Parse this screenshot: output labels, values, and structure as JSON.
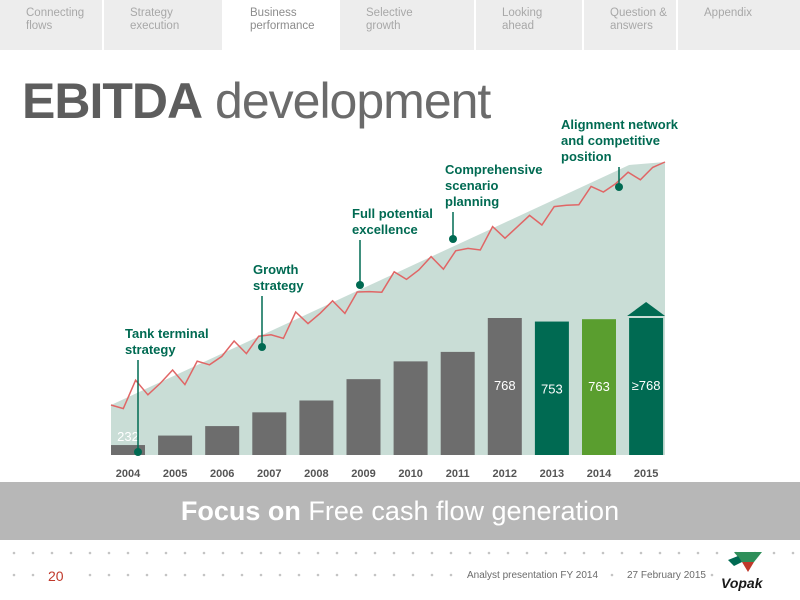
{
  "nav": {
    "tabs": [
      {
        "label": "Connecting\nflows",
        "active": false
      },
      {
        "label": "Strategy\nexecution",
        "active": false
      },
      {
        "label": "Business\nperformance",
        "active": true
      },
      {
        "label": "Selective\ngrowth",
        "active": false
      },
      {
        "label": "Looking\nahead",
        "active": false
      },
      {
        "label": "Question &\nanswers",
        "active": false
      },
      {
        "label": "Appendix",
        "active": false
      }
    ]
  },
  "title": {
    "bold": "EBITDA",
    "normal": "development"
  },
  "chart_data": {
    "type": "bar",
    "categories": [
      "2004",
      "2005",
      "2006",
      "2007",
      "2008",
      "2009",
      "2010",
      "2011",
      "2012",
      "2013",
      "2014",
      "2015"
    ],
    "values": [
      232,
      272,
      312,
      370,
      420,
      510,
      585,
      625,
      768,
      753,
      763,
      768
    ],
    "data_labels": [
      "232",
      "",
      "",
      "",
      "",
      "",
      "",
      "",
      "768",
      "753",
      "763",
      "≥768"
    ],
    "bar_colors": [
      "#6d6d6d",
      "#6d6d6d",
      "#6d6d6d",
      "#6d6d6d",
      "#6d6d6d",
      "#6d6d6d",
      "#6d6d6d",
      "#6d6d6d",
      "#6d6d6d",
      "#006a52",
      "#5a9e2f",
      "#006a52"
    ],
    "arrow_on_last": true,
    "annotations": [
      {
        "label": "Tank terminal\nstrategy",
        "year_index": 0
      },
      {
        "label": "Growth\nstrategy",
        "year_index": 3
      },
      {
        "label": "Full potential\nexcellence",
        "year_index": 5
      },
      {
        "label": "Comprehensive\nscenario\nplanning",
        "year_index": 7
      },
      {
        "label": "Alignment network\nand competitive\nposition",
        "year_index": 10
      }
    ],
    "colors": {
      "area": "#c9ddd6",
      "trend_line": "#e06666",
      "annotation": "#006a52",
      "axis_label": "#555555"
    }
  },
  "banner": {
    "bold": "Focus on",
    "normal": " Free cash flow generation"
  },
  "footer": {
    "page": "20",
    "presentation": "Analyst presentation FY 2014",
    "date": "27 February 2015",
    "logo": "Vopak"
  }
}
